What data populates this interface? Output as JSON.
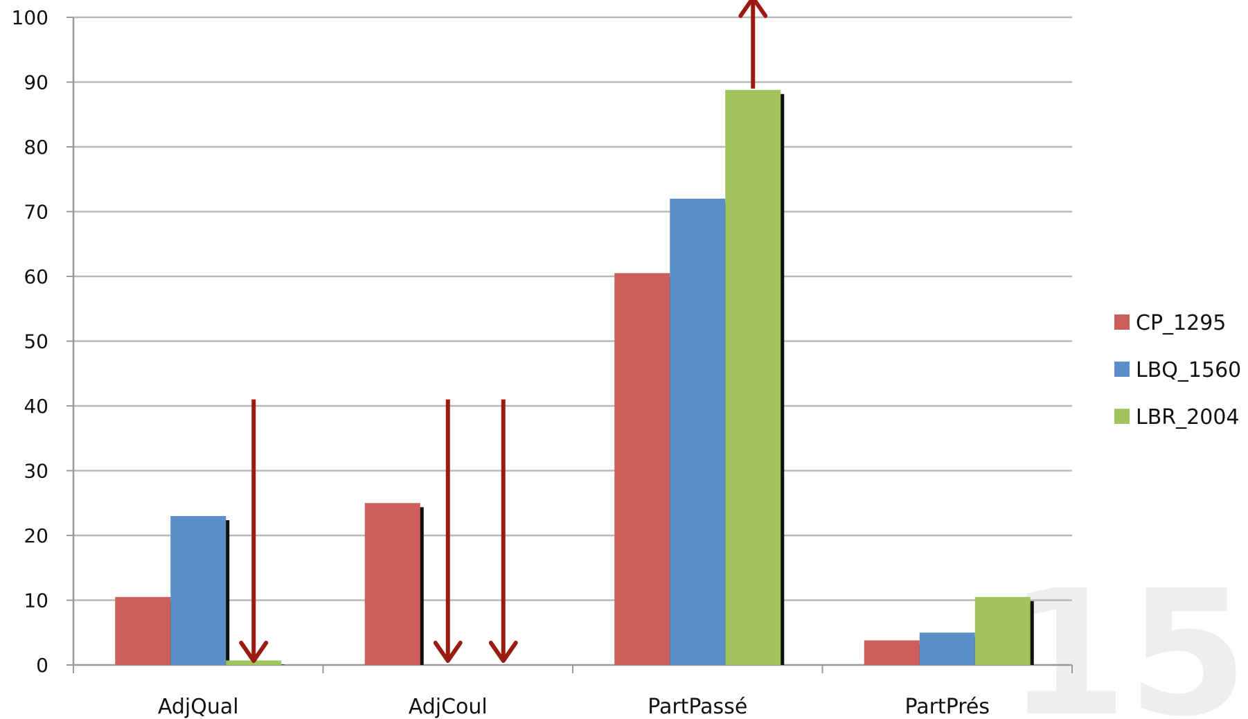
{
  "chart_data": {
    "type": "bar",
    "categories": [
      "AdjQual",
      "AdjCoul",
      "PartPassé",
      "PartPrés"
    ],
    "series": [
      {
        "name": "CP_1295",
        "color": "#cc5f5b",
        "values": [
          10.5,
          25,
          60.5,
          3.8
        ]
      },
      {
        "name": "LBQ_1560",
        "color": "#5a8fc9",
        "values": [
          23,
          0,
          72,
          5
        ]
      },
      {
        "name": "LBR_2004",
        "color": "#a2c45e",
        "values": [
          0.7,
          0,
          88.8,
          10.5
        ]
      }
    ],
    "ylim": [
      0,
      100
    ],
    "yticks": [
      0,
      10,
      20,
      30,
      40,
      50,
      60,
      70,
      80,
      90,
      100
    ],
    "grid": true,
    "legend_position": "right",
    "annotations": [
      {
        "kind": "down-arrow",
        "category": "AdjQual",
        "series": "LBR_2004",
        "from": 41,
        "to": 0
      },
      {
        "kind": "down-arrow",
        "category": "AdjCoul",
        "series": "LBQ_1560",
        "from": 41,
        "to": 0
      },
      {
        "kind": "down-arrow",
        "category": "AdjCoul",
        "series": "LBR_2004",
        "from": 41,
        "to": 0
      },
      {
        "kind": "up-arrow",
        "category": "PartPassé",
        "series": "LBR_2004",
        "from": 89,
        "to": 103
      }
    ],
    "arrow_color": "#9b1a12"
  },
  "watermark": "15"
}
